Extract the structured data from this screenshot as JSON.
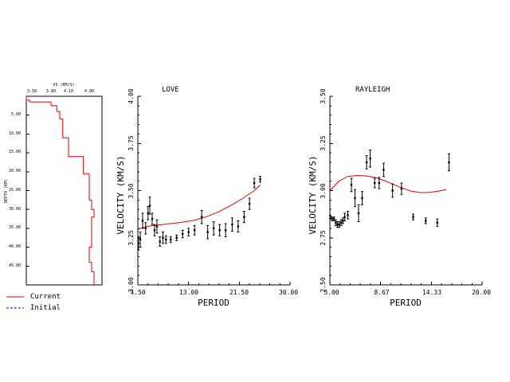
{
  "legend": {
    "current_label": "Current",
    "initial_label": "Initial",
    "current_color": "#e00000",
    "initial_color": "#0000d0"
  },
  "chart_data": [
    {
      "id": "model",
      "type": "line",
      "title": "VS (KM/S)",
      "ylabel": "DEPTH (KM)",
      "x_ticks": [
        "3.50",
        "3.80",
        "4.10",
        "4.80"
      ],
      "y_ticks": [
        "5.00",
        "10.00",
        "15.00",
        "20.00",
        "25.00",
        "30.00",
        "35.00",
        "40.00",
        "45.00"
      ],
      "ylim": [
        0,
        50
      ],
      "series": [
        {
          "name": "Current",
          "color": "#e00000",
          "x": [
            3.0,
            3.0,
            3.3,
            3.3,
            3.8,
            3.8,
            3.9,
            3.9,
            3.95,
            3.95,
            4.0,
            4.0,
            4.1,
            4.1,
            4.6,
            4.6,
            4.8,
            4.8,
            4.9,
            4.9,
            5.0,
            5.0,
            4.9,
            4.9,
            4.8,
            4.8,
            4.9,
            4.9,
            5.0,
            5.0
          ],
          "y": [
            0.0,
            1.0,
            1.0,
            1.5,
            1.5,
            2.5,
            2.5,
            4.0,
            4.0,
            6.0,
            6.0,
            11.0,
            11.0,
            16.0,
            16.0,
            20.5,
            20.5,
            27.5,
            27.5,
            30.0,
            30.0,
            32.0,
            32.0,
            40.0,
            40.0,
            44.0,
            44.0,
            46.5,
            46.5,
            50.0
          ]
        }
      ]
    },
    {
      "id": "love",
      "type": "scatter",
      "title": "LOVE",
      "xlabel": "PERIOD",
      "ylabel": "VELOCITY (KM/S)",
      "x_ticks": [
        "4.50",
        "13.00",
        "21.50",
        "30.00"
      ],
      "y_ticks": [
        "3.00",
        "3.25",
        "3.50",
        "3.75",
        "4.00"
      ],
      "xlim": [
        4.5,
        30.0
      ],
      "ylim": [
        3.0,
        4.0
      ],
      "observed": [
        {
          "x": 4.6,
          "y": 3.22,
          "err": 0.035
        },
        {
          "x": 4.9,
          "y": 3.24,
          "err": 0.04
        },
        {
          "x": 5.3,
          "y": 3.34,
          "err": 0.04
        },
        {
          "x": 5.8,
          "y": 3.3,
          "err": 0.03
        },
        {
          "x": 6.2,
          "y": 3.38,
          "err": 0.035
        },
        {
          "x": 6.5,
          "y": 3.42,
          "err": 0.045
        },
        {
          "x": 6.9,
          "y": 3.35,
          "err": 0.03
        },
        {
          "x": 7.3,
          "y": 3.29,
          "err": 0.03
        },
        {
          "x": 7.7,
          "y": 3.31,
          "err": 0.035
        },
        {
          "x": 8.2,
          "y": 3.23,
          "err": 0.025
        },
        {
          "x": 8.7,
          "y": 3.25,
          "err": 0.03
        },
        {
          "x": 9.2,
          "y": 3.24,
          "err": 0.02
        },
        {
          "x": 10.0,
          "y": 3.24,
          "err": 0.015
        },
        {
          "x": 11.0,
          "y": 3.25,
          "err": 0.015
        },
        {
          "x": 12.0,
          "y": 3.27,
          "err": 0.02
        },
        {
          "x": 13.0,
          "y": 3.28,
          "err": 0.02
        },
        {
          "x": 14.0,
          "y": 3.29,
          "err": 0.025
        },
        {
          "x": 15.2,
          "y": 3.36,
          "err": 0.035
        },
        {
          "x": 16.2,
          "y": 3.28,
          "err": 0.035
        },
        {
          "x": 17.2,
          "y": 3.3,
          "err": 0.035
        },
        {
          "x": 18.2,
          "y": 3.29,
          "err": 0.03
        },
        {
          "x": 19.2,
          "y": 3.29,
          "err": 0.035
        },
        {
          "x": 20.3,
          "y": 3.32,
          "err": 0.035
        },
        {
          "x": 21.3,
          "y": 3.31,
          "err": 0.03
        },
        {
          "x": 22.3,
          "y": 3.36,
          "err": 0.03
        },
        {
          "x": 23.2,
          "y": 3.43,
          "err": 0.03
        },
        {
          "x": 24.0,
          "y": 3.54,
          "err": 0.025
        },
        {
          "x": 25.0,
          "y": 3.56,
          "err": 0.015
        }
      ],
      "predicted": {
        "x": [
          4.5,
          6.0,
          8.0,
          10.0,
          12.0,
          14.0,
          16.0,
          18.0,
          20.0,
          22.0,
          24.0,
          25.0
        ],
        "y": [
          3.295,
          3.31,
          3.318,
          3.325,
          3.333,
          3.343,
          3.362,
          3.387,
          3.42,
          3.458,
          3.5,
          3.53
        ]
      }
    },
    {
      "id": "rayleigh",
      "type": "scatter",
      "title": "RAYLEIGH",
      "xlabel": "PERIOD",
      "ylabel": "VELOCITY (KM/S)",
      "x_ticks": [
        "3.00",
        "8.67",
        "14.33",
        "20.00"
      ],
      "y_ticks": [
        "2.50",
        "2.75",
        "3.00",
        "3.25",
        "3.50"
      ],
      "xlim": [
        3.0,
        20.0
      ],
      "ylim": [
        2.5,
        3.5
      ],
      "observed": [
        {
          "x": 3.05,
          "y": 2.86,
          "err": 0.01
        },
        {
          "x": 3.25,
          "y": 2.85,
          "err": 0.01
        },
        {
          "x": 3.45,
          "y": 2.85,
          "err": 0.01
        },
        {
          "x": 3.65,
          "y": 2.83,
          "err": 0.015
        },
        {
          "x": 3.85,
          "y": 2.82,
          "err": 0.015
        },
        {
          "x": 4.05,
          "y": 2.82,
          "err": 0.015
        },
        {
          "x": 4.25,
          "y": 2.83,
          "err": 0.015
        },
        {
          "x": 4.45,
          "y": 2.84,
          "err": 0.015
        },
        {
          "x": 4.65,
          "y": 2.86,
          "err": 0.02
        },
        {
          "x": 5.0,
          "y": 2.87,
          "err": 0.02
        },
        {
          "x": 5.4,
          "y": 3.03,
          "err": 0.035
        },
        {
          "x": 5.8,
          "y": 2.96,
          "err": 0.045
        },
        {
          "x": 6.2,
          "y": 2.88,
          "err": 0.045
        },
        {
          "x": 6.6,
          "y": 2.96,
          "err": 0.035
        },
        {
          "x": 7.1,
          "y": 3.15,
          "err": 0.035
        },
        {
          "x": 7.5,
          "y": 3.17,
          "err": 0.045
        },
        {
          "x": 8.0,
          "y": 3.04,
          "err": 0.025
        },
        {
          "x": 8.5,
          "y": 3.04,
          "err": 0.03
        },
        {
          "x": 9.0,
          "y": 3.11,
          "err": 0.035
        },
        {
          "x": 10.0,
          "y": 3.0,
          "err": 0.035
        },
        {
          "x": 11.0,
          "y": 3.01,
          "err": 0.03
        },
        {
          "x": 12.3,
          "y": 2.86,
          "err": 0.015
        },
        {
          "x": 13.7,
          "y": 2.84,
          "err": 0.015
        },
        {
          "x": 15.0,
          "y": 2.83,
          "err": 0.02
        },
        {
          "x": 16.3,
          "y": 3.15,
          "err": 0.045
        }
      ],
      "predicted": {
        "x": [
          3.0,
          4.0,
          5.0,
          6.0,
          7.0,
          8.0,
          9.0,
          10.0,
          11.0,
          12.0,
          13.0,
          14.0,
          15.0,
          16.0
        ],
        "y": [
          3.0,
          3.05,
          3.075,
          3.08,
          3.078,
          3.07,
          3.055,
          3.035,
          3.015,
          2.998,
          2.99,
          2.99,
          2.996,
          3.005
        ]
      }
    }
  ]
}
